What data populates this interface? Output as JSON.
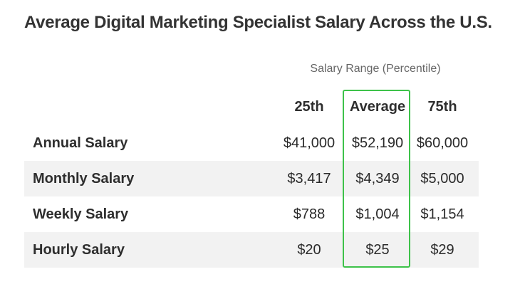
{
  "title": "Average Digital Marketing Specialist Salary Across the U.S.",
  "range_caption": "Salary Range (Percentile)",
  "columns": {
    "p25": "25th",
    "average": "Average",
    "p75": "75th"
  },
  "highlight_color": "#3ec24a",
  "rows": [
    {
      "label": "Annual Salary",
      "p25": "$41,000",
      "average": "$52,190",
      "p75": "$60,000"
    },
    {
      "label": "Monthly Salary",
      "p25": "$3,417",
      "average": "$4,349",
      "p75": "$5,000"
    },
    {
      "label": "Weekly Salary",
      "p25": "$788",
      "average": "$1,004",
      "p75": "$1,154"
    },
    {
      "label": "Hourly Salary",
      "p25": "$20",
      "average": "$25",
      "p75": "$29"
    }
  ]
}
